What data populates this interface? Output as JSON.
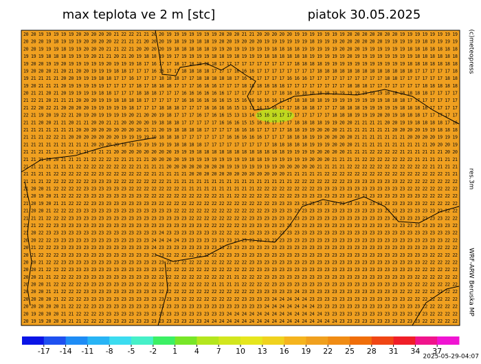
{
  "header": {
    "title": "max teplota ve 2 m [stc]",
    "date": "piatok 30.05.2025"
  },
  "side_labels": {
    "copyright": "(c)meteopress",
    "resolution": "res.3m",
    "model": "WRF-ARW Beruska MP"
  },
  "timestamp": "2025-05-29-04:07",
  "map": {
    "background": "#f0a020",
    "rows": [
      "20 20 19 19 19 19 19 20 20 20 20 20 21 22 22 21 21 20 20 19 19 19 19 19 19 19 20 20 20 21 21 20 20 20 20 20 19 19 19 19 19 19 19 20 20 20 20 20 20 20 19 19 19 19 19 19 19 19",
      "20 20 20 19 18 19 19 19 20 20 20 20 22 21 21 21 20 20 20 19 18 19 19 18 18 19 20 20 19 20 20 20 19 19 19 19 19 19 18 19 19 19 20 20 20 20 20 20 19 19 19 19 19 18 19 19 19 19",
      "20 20 19 19 19 18 19 19 20 20 20 21 21 22 21 20 20 20 20 19 18 18 18 18 18 19 19 20 19 19 19 19 19 18 18 18 18 19 19 19 19 19 20 20 20 19 19 19 19 19 19 18 18 18 18 18 18 18",
      "19 19 19 18 18 18 19 19 19 20 21 21 20 21 20 19 18 18 19 19 17 19 19 19 19 18 18 19 18 19 19 19 18 18 18 18 18 18 19 19 19 19 19 20 19 19 19 19 19 19 19 19 18 18 18 18 18 18",
      "19 20 20 19 19 20 19 19 19 19 19 20 19 19 19 18 17 16 17 17 18 17 18 18 18 18 17 17 17 17 17 17 17 17 17 17 18 18 18 18 19 19 19 19 19 19 19 19 19 19 19 18 18 18 18 18 18 18",
      "19 20 20 20 21 20 21 20 20 19 19 19 18 18 17 17 17 16 16 17 17 18 18 18 18 17 17 17 16 16 16 17 17 17 17 17 17 17 17 18 18 18 18 18 18 18 18 18 18 18 18 18 17 17 17 17 17 18",
      "19 21 21 21 21 20 20 19 19 19 18 18 17 17 16 17 17 17 18 18 18 17 17 18 18 18 18 18 17 16 17 17 17 17 17 16 16 16 17 17 17 17 17 17 17 17 17 17 18 18 17 17 17 17 17 17 18 18",
      "19 20 21 21 21 20 19 19 19 19 19 17 17 17 17 18 17 18 18 18 17 17 17 16 16 16 17 17 17 18 18 18 18 18 18 17 17 17 17 17 17 17 17 18 18 18 17 17 17 17 17 17 17 18 18 18 18 18",
      "20 21 21 20 21 20 19 19 19 19 18 18 17 17 17 18 18 18 17 17 17 16 16 16 16 16 16 17 17 17 17 17 17 17 18 18 18 18 18 18 18 19 19 19 19 19 19 19 18 18 18 18 18 18 17 17 17 17",
      "21 22 21 20 21 21 21 20 20 20 19 19 18 18 18 18 17 17 17 17 17 16 16 16 16 16 16 15 15 16 16 16 16 16 17 17 18 18 18 18 19 19 19 19 19 19 19 19 18 18 18 17 17 17 17 17 17 17",
      "21 22 20 22 21 20 20 20 20 19 19 19 19 19 18 17 17 17 18 18 18 17 17 17 16 16 16 16 15 13 13 14 15 16 17 17 18 18 18 17 17 17 18 18 18 19 19 19 19 19 18 18 18 18 17 17 17 17",
      "22 21 19 20 19 22 21 20 19 20 19 19 19 19 20 21 20 20 19 18 17 17 17 16 17 16 16 15 13 13 14 15 16 16 17 17 17 17 17 17 17 18 18 18 19 19 19 20 20 19 18 18 18 17 17 17 17 17",
      "21 21 20 20 21 21 20 21 21 20 20 21 21 20 20 20 20 19 18 18 18 17 17 17 17 17 16 16 16 15 15 16 16 17 17 17 18 18 18 18 19 19 20 20 21 21 21 21 20 20 19 19 18 18 18 18 17 16",
      "21 21 21 21 21 21 21 20 20 20 20 20 20 20 20 20 21 21 20 19 18 18 18 18 17 17 17 17 16 16 16 17 17 17 17 18 18 19 19 20 20 20 21 21 21 21 21 21 21 20 20 20 20 19 19 18 18 18",
      "21 21 21 22 22 21 20 20 20 20 20 20 20 19 19 19 19 19 18 18 18 17 17 17 17 17 17 16 16 16 16 16 17 17 17 18 18 18 19 19 20 20 20 20 21 21 21 21 21 21 21 20 20 20 20 19 19 19",
      "21 21 21 21 21 21 21 21 21 20 20 20 20 19 19 19 19 19 19 19 18 18 18 18 17 17 17 17 17 17 17 17 17 18 18 18 18 18 19 19 19 20 20 20 21 21 21 21 21 21 21 21 21 21 20 20 20 19",
      "21 21 21 21 21 21 22 21 21 21 21 21 20 20 20 20 20 20 20 20 19 19 19 18 18 18 18 18 18 18 18 18 18 18 18 19 19 19 19 20 20 20 20 21 21 21 22 22 22 22 21 21 21 21 21 21 20 20",
      "21 21 21 20 20 21 21 21 21 22 22 22 22 21 21 21 21 20 20 20 20 19 19 19 19 19 19 19 19 19 18 18 19 19 19 19 19 19 20 20 20 21 21 21 21 22 22 22 22 22 22 22 21 21 21 21 21 21",
      "21 21 21 21 21 21 21 22 22 22 22 22 22 22 22 21 21 21 21 20 20 20 20 20 20 20 20 19 19 19 19 19 19 19 20 20 20 20 20 21 21 21 21 22 22 22 22 22 22 22 22 22 22 22 21 21 21 21",
      "21 21 21 21 22 22 22 22 22 22 23 22 22 22 22 22 22 21 21 21 21 21 20 20 20 20 20 20 20 20 20 20 20 20 20 21 21 21 21 21 22 22 22 22 22 22 22 22 22 22 22 22 22 22 22 22 21 21",
      "21 21 21 22 22 22 22 22 22 23 23 23 22 22 22 22 22 22 22 21 21 21 21 21 21 21 21 21 21 21 21 21 21 21 21 21 22 22 22 22 22 22 22 23 23 23 23 23 23 23 22 22 22 22 22 22 22 22",
      "21 20 20 21 22 22 22 22 23 23 23 23 23 23 22 22 22 22 22 22 22 21 21 21 21 21 21 21 21 21 21 22 22 22 22 22 22 22 22 23 23 23 23 23 23 23 23 23 23 23 23 22 22 22 22 22 22 22",
      "21 20 19 20 21 22 22 22 23 23 23 23 23 23 23 23 22 22 22 22 22 22 22 22 22 22 21 21 22 22 22 22 22 22 22 22 23 23 23 23 23 23 23 23 23 23 23 23 23 23 23 23 23 22 22 22 22 22",
      "21 20 19 20 21 21 22 22 22 23 23 23 23 23 23 23 23 23 22 22 22 22 22 22 22 22 22 22 22 22 22 22 22 23 23 23 23 23 23 23 23 23 23 23 23 23 23 23 23 23 23 23 23 22 22 22 22 22",
      "21 20 20 21 22 22 22 23 23 23 23 23 23 23 23 23 23 23 23 23 22 22 22 22 22 22 22 22 22 22 22 22 23 23 23 23 23 23 23 23 23 23 23 23 23 23 23 23 23 23 23 23 23 23 23 22 22 22",
      "21 21 21 22 22 22 23 23 23 23 23 23 23 23 23 23 23 23 23 23 23 23 22 22 22 22 22 22 22 22 23 23 23 23 23 23 23 23 23 23 23 23 23 23 23 23 23 23 23 23 23 23 23 23 23 23 22 22",
      "21 21 22 22 23 23 23 23 23 23 23 23 23 23 23 23 23 23 23 23 23 23 23 23 22 22 22 22 22 23 23 23 23 23 23 23 23 23 23 23 23 23 23 23 23 23 23 23 23 23 23 23 23 23 23 23 23 22",
      "21 20 22 23 23 23 23 23 23 23 23 23 23 23 23 23 23 23 24 23 23 23 23 23 23 23 22 22 22 22 23 23 23 23 23 23 23 23 23 23 23 23 23 23 23 23 23 23 23 23 23 23 23 23 23 23 23 22",
      "20 20 22 22 23 23 23 23 23 23 23 23 23 23 23 23 23 24 24 24 24 23 23 23 23 23 23 23 23 23 23 23 23 23 23 23 23 23 23 23 23 23 23 23 23 23 23 23 23 23 23 23 23 23 23 23 22 22",
      "20 21 22 22 23 23 23 23 23 23 23 23 23 23 23 23 23 24 23 23 23 23 23 23 23 23 23 23 23 23 23 23 23 23 23 23 23 23 23 23 23 23 23 23 23 23 23 23 23 23 23 23 23 23 23 22 22 22",
      "20 21 22 22 22 23 23 23 23 23 23 23 23 23 23 23 23 23 23 22 22 22 22 22 22 22 22 23 23 23 23 23 23 23 23 23 23 23 23 23 23 23 23 23 23 23 23 23 23 23 23 23 23 23 22 22 22 22",
      "20 20 21 22 22 23 23 23 23 23 23 23 23 23 23 23 23 23 23 22 22 22 22 22 22 22 22 22 22 22 23 23 23 23 23 23 23 23 23 23 23 23 23 23 23 23 23 23 23 23 23 23 23 22 22 22 22 22",
      "20 20 21 22 22 22 23 23 23 23 23 23 23 23 23 23 23 23 22 22 22 22 22 22 22 22 22 22 22 22 22 23 23 23 23 23 23 23 23 23 23 23 23 23 23 23 23 23 23 23 23 23 22 22 22 22 22 22",
      "20 20 21 21 22 22 22 23 23 23 23 23 23 23 23 23 23 22 22 22 22 22 22 22 22 22 22 21 21 22 22 22 23 23 23 23 23 23 23 23 23 23 23 23 23 23 23 23 23 23 23 23 22 22 22 22 22 22",
      "20 20 20 21 22 22 22 22 23 23 23 23 23 23 23 23 22 22 22 22 22 22 22 22 22 21 21 21 21 22 22 22 22 23 23 23 23 23 23 23 23 23 23 23 23 23 23 23 23 23 23 22 22 22 22 22 22 22",
      "20 20 20 21 21 22 22 22 23 23 23 23 23 23 23 23 23 23 22 22 22 22 22 22 22 22 22 22 22 22 22 23 23 23 23 23 24 23 23 23 23 23 23 23 23 23 23 23 23 23 22 22 22 22 22 22 22 22",
      "20 20 20 20 21 22 22 22 23 23 23 23 23 23 23 23 23 23 23 23 23 22 22 22 22 22 22 22 22 23 23 23 23 24 24 24 24 24 23 23 23 23 23 23 23 23 23 23 23 23 23 22 22 22 22 22 22 22",
      "20 20 20 20 20 21 22 22 22 23 23 23 23 23 23 23 23 23 23 23 23 23 23 23 23 23 23 23 23 23 23 23 24 24 24 24 24 24 24 23 23 23 23 23 23 23 23 23 23 23 23 23 23 22 22 22 22 22",
      "20 19 20 20 20 21 21 22 22 22 23 23 23 23 23 23 23 23 23 23 23 23 23 23 23 23 23 24 24 24 24 24 24 24 24 24 24 24 24 24 23 23 23 23 23 23 23 23 23 23 23 23 23 23 22 22 22 22",
      "20 19 19 20 20 20 21 21 22 22 22 23 23 23 23 23 23 23 23 23 23 23 23 23 24 24 24 24 24 24 24 24 24 24 24 24 24 24 24 24 24 24 23 23 23 23 23 23 23 23 23 23 23 22 22 22 22 22"
    ]
  },
  "colorbar": {
    "xlim": [
      -20,
      40
    ],
    "ticks": [
      -17,
      -14,
      -11,
      -8,
      -5,
      -2,
      1,
      4,
      7,
      10,
      13,
      16,
      19,
      22,
      25,
      28,
      31,
      34,
      37
    ],
    "colors": [
      "#0a14e6",
      "#1e50f0",
      "#1e8cf5",
      "#28b4f5",
      "#3cdcf0",
      "#46f0c8",
      "#3cf064",
      "#78e628",
      "#b4e61e",
      "#d2e61e",
      "#e6e61e",
      "#f0d21e",
      "#f5b41e",
      "#f0a01e",
      "#f08c14",
      "#f06e0a",
      "#f04614",
      "#f01e28",
      "#f0148c",
      "#f014d2"
    ]
  }
}
